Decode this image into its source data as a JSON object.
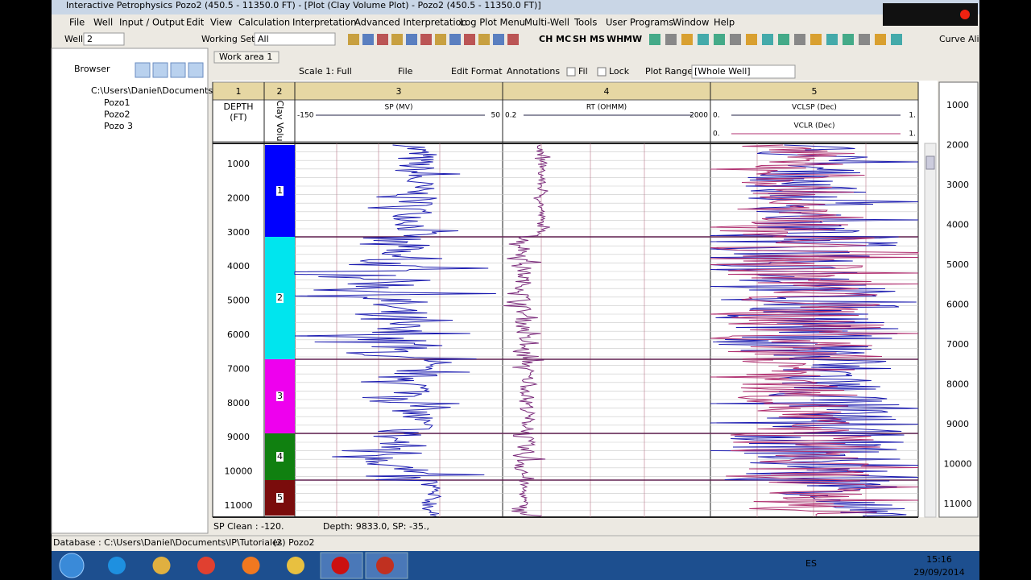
{
  "window": {
    "app_title": "Interactive Petrophysics",
    "doc_title": "Pozo2 (450.5 - 11350.0 FT) - [Plot (Clay Volume Plot) - Pozo2 (450.5 - 11350.0 FT)]"
  },
  "menu": [
    "File",
    "Well",
    "Input / Output",
    "Edit",
    "View",
    "Calculation",
    "Interpretation",
    "Advanced Interpretation",
    "Log Plot Menu",
    "Multi-Well",
    "Tools",
    "User Programs",
    "Window",
    "Help"
  ],
  "toolbar": {
    "well_label": "Well",
    "well_value": "2",
    "working_set_label": "Working Set",
    "working_set_value": "All",
    "codes": [
      "CH",
      "MC",
      "SH",
      "MS",
      "WH",
      "MW"
    ],
    "curve_alias": "Curve Alias"
  },
  "browser": {
    "title": "Browser",
    "root": "C:\\Users\\Daniel\\Documents\\IP\\Tut",
    "items": [
      "Pozo1",
      "Pozo2",
      "Pozo 3"
    ]
  },
  "tab": "Work area 1",
  "plot_toolbar": {
    "scale_label": "Scale 1:",
    "scale_value": "Full",
    "file": "File",
    "edit_format": "Edit Format",
    "annotations": "Annotations",
    "fill": "Fil",
    "lock": "Lock",
    "plot_range_label": "Plot Range",
    "plot_range_value": "[Whole Well]"
  },
  "tracks": {
    "numbers": [
      "1",
      "2",
      "3",
      "4",
      "5"
    ],
    "depth_header": [
      "DEPTH",
      "(FT)"
    ],
    "zone_header": "Clay Volu",
    "sp": {
      "name": "SP (MV)",
      "left": "-150",
      "right": "50"
    },
    "rt": {
      "name": "RT (OHMM)",
      "left": "0.2",
      "right": "2000"
    },
    "vclsp": {
      "name": "VCLSP (Dec)",
      "left": "0.",
      "right": "1."
    },
    "vclr": {
      "name": "VCLR (Dec)",
      "left": "0.",
      "right": "1."
    }
  },
  "depth_labels": [
    "1000",
    "2000",
    "3000",
    "4000",
    "5000",
    "6000",
    "7000",
    "8000",
    "9000",
    "10000",
    "11000"
  ],
  "zones": [
    "1",
    "2",
    "3",
    "4",
    "5"
  ],
  "overview_depths": [
    "1000",
    "2000",
    "3000",
    "4000",
    "5000",
    "6000",
    "7000",
    "8000",
    "9000",
    "10000",
    "11000"
  ],
  "status": {
    "sp_clean": "SP Clean : -120.",
    "cursor": "Depth: 9833.0,   SP: -35.,"
  },
  "statusbar": {
    "database": "Database : C:\\Users\\Daniel\\Documents\\IP\\Tutoriales",
    "well": "(2) Pozo2"
  },
  "taskbar": {
    "language": "ES",
    "time": "15:16",
    "date": "29/09/2014"
  }
}
